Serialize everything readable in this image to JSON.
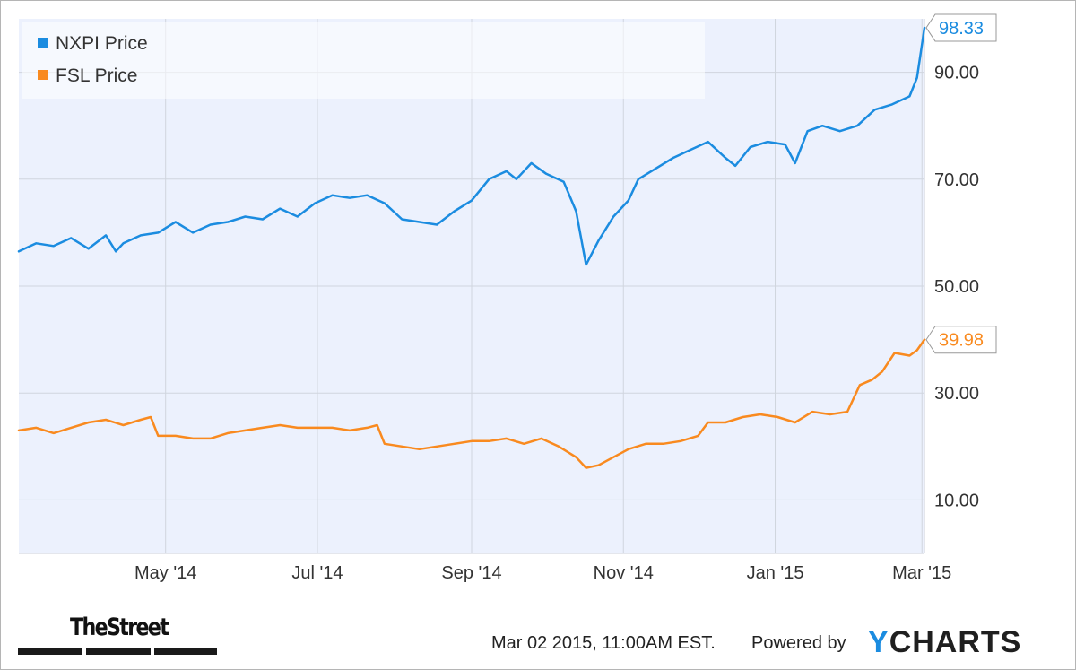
{
  "chart_data": {
    "type": "line",
    "x_range": [
      "2014-03-03",
      "2015-03-02"
    ],
    "ylim": [
      0,
      100
    ],
    "y_ticks": [
      10,
      30,
      50,
      70,
      90
    ],
    "y_tick_labels": [
      "10.00",
      "30.00",
      "50.00",
      "70.00",
      "90.00"
    ],
    "x_ticks": [
      {
        "date": "2014-05-01",
        "label": "May '14"
      },
      {
        "date": "2014-07-01",
        "label": "Jul '14"
      },
      {
        "date": "2014-09-01",
        "label": "Sep '14"
      },
      {
        "date": "2014-11-01",
        "label": "Nov '14"
      },
      {
        "date": "2015-01-01",
        "label": "Jan '15"
      },
      {
        "date": "2015-03-01",
        "label": "Mar '15"
      }
    ],
    "grid": true,
    "legend_position": "top-left",
    "series": [
      {
        "name": "NXPI Price",
        "color": "#1b8ce0",
        "last_value_label": "98.33",
        "points": [
          [
            "2014-03-03",
            56.5
          ],
          [
            "2014-03-10",
            58.0
          ],
          [
            "2014-03-17",
            57.5
          ],
          [
            "2014-03-24",
            59.0
          ],
          [
            "2014-03-31",
            57.0
          ],
          [
            "2014-04-07",
            59.5
          ],
          [
            "2014-04-11",
            56.5
          ],
          [
            "2014-04-14",
            58.0
          ],
          [
            "2014-04-21",
            59.5
          ],
          [
            "2014-04-28",
            60.0
          ],
          [
            "2014-05-05",
            62.0
          ],
          [
            "2014-05-12",
            60.0
          ],
          [
            "2014-05-19",
            61.5
          ],
          [
            "2014-05-26",
            62.0
          ],
          [
            "2014-06-02",
            63.0
          ],
          [
            "2014-06-09",
            62.5
          ],
          [
            "2014-06-16",
            64.5
          ],
          [
            "2014-06-23",
            63.0
          ],
          [
            "2014-06-30",
            65.5
          ],
          [
            "2014-07-07",
            67.0
          ],
          [
            "2014-07-14",
            66.5
          ],
          [
            "2014-07-21",
            67.0
          ],
          [
            "2014-07-28",
            65.5
          ],
          [
            "2014-08-04",
            62.5
          ],
          [
            "2014-08-11",
            62.0
          ],
          [
            "2014-08-18",
            61.5
          ],
          [
            "2014-08-25",
            64.0
          ],
          [
            "2014-09-01",
            66.0
          ],
          [
            "2014-09-08",
            70.0
          ],
          [
            "2014-09-15",
            71.5
          ],
          [
            "2014-09-19",
            70.0
          ],
          [
            "2014-09-25",
            73.0
          ],
          [
            "2014-10-01",
            71.0
          ],
          [
            "2014-10-08",
            69.5
          ],
          [
            "2014-10-13",
            64.0
          ],
          [
            "2014-10-17",
            54.0
          ],
          [
            "2014-10-22",
            58.5
          ],
          [
            "2014-10-28",
            63.0
          ],
          [
            "2014-11-03",
            66.0
          ],
          [
            "2014-11-07",
            70.0
          ],
          [
            "2014-11-14",
            72.0
          ],
          [
            "2014-11-21",
            74.0
          ],
          [
            "2014-11-28",
            75.5
          ],
          [
            "2014-12-05",
            77.0
          ],
          [
            "2014-12-12",
            74.0
          ],
          [
            "2014-12-16",
            72.5
          ],
          [
            "2014-12-22",
            76.0
          ],
          [
            "2014-12-29",
            77.0
          ],
          [
            "2015-01-05",
            76.5
          ],
          [
            "2015-01-09",
            73.0
          ],
          [
            "2015-01-14",
            79.0
          ],
          [
            "2015-01-20",
            80.0
          ],
          [
            "2015-01-27",
            79.0
          ],
          [
            "2015-02-03",
            80.0
          ],
          [
            "2015-02-10",
            83.0
          ],
          [
            "2015-02-17",
            84.0
          ],
          [
            "2015-02-24",
            85.5
          ],
          [
            "2015-02-27",
            89.0
          ],
          [
            "2015-03-02",
            98.33
          ]
        ]
      },
      {
        "name": "FSL Price",
        "color": "#f98a1f",
        "last_value_label": "39.98",
        "points": [
          [
            "2014-03-03",
            23.0
          ],
          [
            "2014-03-10",
            23.5
          ],
          [
            "2014-03-17",
            22.5
          ],
          [
            "2014-03-24",
            23.5
          ],
          [
            "2014-03-31",
            24.5
          ],
          [
            "2014-04-07",
            25.0
          ],
          [
            "2014-04-14",
            24.0
          ],
          [
            "2014-04-21",
            25.0
          ],
          [
            "2014-04-25",
            25.5
          ],
          [
            "2014-04-28",
            22.0
          ],
          [
            "2014-05-05",
            22.0
          ],
          [
            "2014-05-12",
            21.5
          ],
          [
            "2014-05-19",
            21.5
          ],
          [
            "2014-05-26",
            22.5
          ],
          [
            "2014-06-02",
            23.0
          ],
          [
            "2014-06-09",
            23.5
          ],
          [
            "2014-06-16",
            24.0
          ],
          [
            "2014-06-23",
            23.5
          ],
          [
            "2014-06-30",
            23.5
          ],
          [
            "2014-07-07",
            23.5
          ],
          [
            "2014-07-14",
            23.0
          ],
          [
            "2014-07-21",
            23.5
          ],
          [
            "2014-07-25",
            24.0
          ],
          [
            "2014-07-28",
            20.5
          ],
          [
            "2014-08-04",
            20.0
          ],
          [
            "2014-08-11",
            19.5
          ],
          [
            "2014-08-18",
            20.0
          ],
          [
            "2014-08-25",
            20.5
          ],
          [
            "2014-09-01",
            21.0
          ],
          [
            "2014-09-08",
            21.0
          ],
          [
            "2014-09-15",
            21.5
          ],
          [
            "2014-09-22",
            20.5
          ],
          [
            "2014-09-29",
            21.5
          ],
          [
            "2014-10-06",
            20.0
          ],
          [
            "2014-10-13",
            18.0
          ],
          [
            "2014-10-17",
            16.0
          ],
          [
            "2014-10-22",
            16.5
          ],
          [
            "2014-10-28",
            18.0
          ],
          [
            "2014-11-03",
            19.5
          ],
          [
            "2014-11-10",
            20.5
          ],
          [
            "2014-11-17",
            20.5
          ],
          [
            "2014-11-24",
            21.0
          ],
          [
            "2014-12-01",
            22.0
          ],
          [
            "2014-12-05",
            24.5
          ],
          [
            "2014-12-12",
            24.5
          ],
          [
            "2014-12-19",
            25.5
          ],
          [
            "2014-12-26",
            26.0
          ],
          [
            "2015-01-02",
            25.5
          ],
          [
            "2015-01-09",
            24.5
          ],
          [
            "2015-01-16",
            26.5
          ],
          [
            "2015-01-23",
            26.0
          ],
          [
            "2015-01-30",
            26.5
          ],
          [
            "2015-02-04",
            31.5
          ],
          [
            "2015-02-09",
            32.5
          ],
          [
            "2015-02-13",
            34.0
          ],
          [
            "2015-02-18",
            37.5
          ],
          [
            "2015-02-24",
            37.0
          ],
          [
            "2015-02-27",
            38.0
          ],
          [
            "2015-03-02",
            39.98
          ]
        ]
      }
    ]
  },
  "footer": {
    "brand": "TheStreet",
    "timestamp": "Mar 02 2015, 11:00AM EST.",
    "powered_by": "Powered by",
    "ycharts_y": "Y",
    "ycharts_rest": "CHARTS"
  }
}
